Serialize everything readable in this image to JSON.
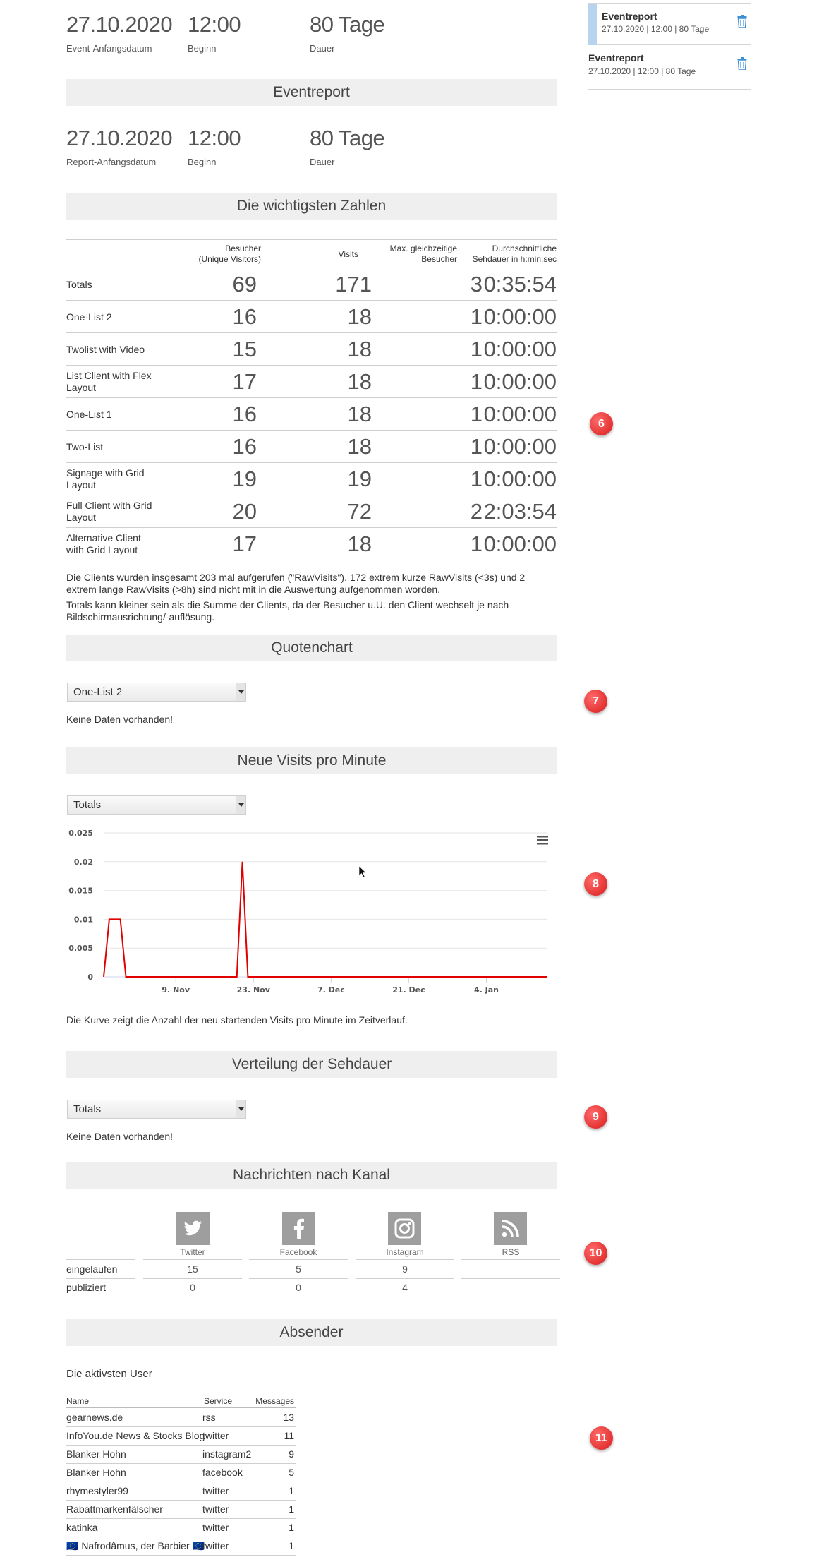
{
  "event": {
    "date": "27.10.2020",
    "date_label": "Event-Anfangsdatum",
    "start": "12:00",
    "start_label": "Beginn",
    "duration": "80 Tage",
    "duration_label": "Dauer"
  },
  "eventreport_header": "Eventreport",
  "report": {
    "date": "27.10.2020",
    "date_label": "Report-Anfangsdatum",
    "start": "12:00",
    "start_label": "Beginn",
    "duration": "80 Tage",
    "duration_label": "Dauer"
  },
  "numbers": {
    "header": "Die wichtigsten Zahlen",
    "columns": [
      "Besucher\n(Unique Visitors)",
      "Visits",
      "Max. gleichzeitige\nBesucher",
      "Durchschnittliche\nSehdauer in h:min:sec"
    ],
    "rows": [
      {
        "label": "Totals",
        "visitors": "69",
        "visits": "171",
        "max": "3",
        "avg": "0:35:54"
      },
      {
        "label": "One-List 2",
        "visitors": "16",
        "visits": "18",
        "max": "1",
        "avg": "0:00:00"
      },
      {
        "label": "Twolist with Video",
        "visitors": "15",
        "visits": "18",
        "max": "1",
        "avg": "0:00:00"
      },
      {
        "label": "List Client with Flex Layout",
        "visitors": "17",
        "visits": "18",
        "max": "1",
        "avg": "0:00:00"
      },
      {
        "label": "One-List 1",
        "visitors": "16",
        "visits": "18",
        "max": "1",
        "avg": "0:00:00"
      },
      {
        "label": "Two-List",
        "visitors": "16",
        "visits": "18",
        "max": "1",
        "avg": "0:00:00"
      },
      {
        "label": "Signage with Grid Layout",
        "visitors": "19",
        "visits": "19",
        "max": "1",
        "avg": "0:00:00"
      },
      {
        "label": "Full Client with Grid Layout",
        "visitors": "20",
        "visits": "72",
        "max": "2",
        "avg": "2:03:54"
      },
      {
        "label": "Alternative Client with Grid Layout",
        "visitors": "17",
        "visits": "18",
        "max": "1",
        "avg": "0:00:00"
      }
    ],
    "note1": "Die Clients wurden insgesamt 203 mal aufgerufen (\"RawVisits\"). 172 extrem kurze RawVisits (<3s) und 2 extrem lange RawVisits (>8h) sind nicht mit in die Auswertung aufgenommen worden.",
    "note2": "Totals kann kleiner sein als die Summe der Clients, da der Besucher u.U. den Client wechselt je nach Bildschirmausrichtung/-auflösung."
  },
  "quotenchart": {
    "header": "Quotenchart",
    "selected": "One-List 2",
    "empty": "Keine Daten vorhanden!"
  },
  "visits_per_minute": {
    "header": "Neue Visits pro Minute",
    "selected": "Totals",
    "caption": "Die Kurve zeigt die Anzahl der neu startenden Visits pro Minute im Zeitverlauf."
  },
  "chart_data": {
    "type": "line",
    "title": "",
    "xlabel": "",
    "ylabel": "",
    "x_ticks": [
      "9. Nov",
      "23. Nov",
      "7. Dec",
      "21. Dec",
      "4. Jan"
    ],
    "y_ticks": [
      "0",
      "0.005",
      "0.01",
      "0.015",
      "0.02",
      "0.025"
    ],
    "ylim": [
      0,
      0.025
    ],
    "xlim": [
      "2020-10-27",
      "2021-01-15"
    ],
    "grid": true,
    "series": [
      {
        "color": "#e00000",
        "points": [
          [
            "2020-10-27",
            0
          ],
          [
            "2020-10-28",
            0.01
          ],
          [
            "2020-10-30",
            0.01
          ],
          [
            "2020-10-31",
            0
          ],
          [
            "2020-11-20",
            0
          ],
          [
            "2020-11-21",
            0.02
          ],
          [
            "2020-11-22",
            0
          ],
          [
            "2021-01-15",
            0
          ]
        ]
      }
    ]
  },
  "sehdauer": {
    "header": "Verteilung der Sehdauer",
    "selected": "Totals",
    "empty": "Keine Daten vorhanden!"
  },
  "channels": {
    "header": "Nachrichten nach Kanal",
    "names": [
      "Twitter",
      "Facebook",
      "Instagram",
      "RSS"
    ],
    "rows": [
      {
        "label": "eingelaufen",
        "values": [
          "15",
          "5",
          "9",
          ""
        ]
      },
      {
        "label": "publiziert",
        "values": [
          "0",
          "0",
          "4",
          ""
        ]
      }
    ]
  },
  "absender": {
    "header": "Absender",
    "subtitle": "Die aktivsten User",
    "columns": [
      "Name",
      "Service",
      "Messages"
    ],
    "rows": [
      {
        "name": "gearnews.de",
        "service": "rss",
        "messages": "13"
      },
      {
        "name": "InfoYou.de News & Stocks Blog",
        "service": "twitter",
        "messages": "11"
      },
      {
        "name": "Blanker Hohn",
        "service": "instagram2",
        "messages": "9"
      },
      {
        "name": "Blanker Hohn",
        "service": "facebook",
        "messages": "5"
      },
      {
        "name": "rhymestyler99",
        "service": "twitter",
        "messages": "1"
      },
      {
        "name": "Rabattmarkenfälscher",
        "service": "twitter",
        "messages": "1"
      },
      {
        "name": "katinka",
        "service": "twitter",
        "messages": "1"
      },
      {
        "name": "🇪🇺 Nafrodâmus, der Barbier 🇪🇺",
        "service": "twitter",
        "messages": "1"
      }
    ]
  },
  "badges": [
    "6",
    "7",
    "8",
    "9",
    "10",
    "11"
  ],
  "sidebar": {
    "items": [
      {
        "title": "Eventreport",
        "sub": "27.10.2020 | 12:00 | 80 Tage"
      },
      {
        "title": "Eventreport",
        "sub": "27.10.2020 | 12:00 | 80 Tage"
      }
    ]
  },
  "colors": {
    "accent": "#4a90d9",
    "line": "#e00000",
    "badge": "#e02020"
  }
}
